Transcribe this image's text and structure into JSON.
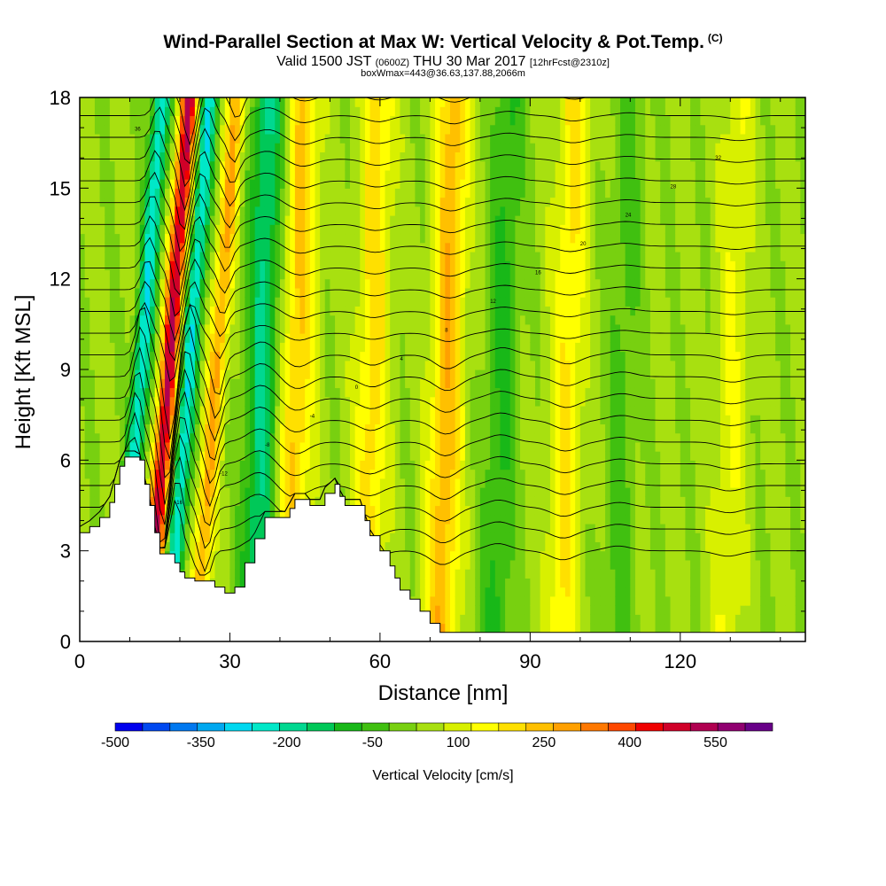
{
  "title": {
    "main": "Wind-Parallel Section at Max W: Vertical Velocity & Pot.Temp.",
    "mark": "(C)",
    "valid_prefix": "Valid 1500 JST",
    "valid_z": "(0600Z)",
    "valid_date": "THU 30 Mar 2017",
    "fcst": "[12hrFcst@2310z]",
    "box": "boxWmax=443@36.63,137.88,2066m"
  },
  "chart_data": {
    "type": "heatmap",
    "xlabel": "Distance [nm]",
    "ylabel": "Height [Kft MSL]",
    "xlim": [
      0,
      145
    ],
    "ylim": [
      0,
      18
    ],
    "x_ticks": [
      0,
      30,
      60,
      90,
      120
    ],
    "y_ticks": [
      0,
      3,
      6,
      9,
      12,
      15,
      18
    ],
    "colorbar": {
      "title": "Vertical Velocity [cm/s]",
      "min": -500,
      "max": 650,
      "step": 50,
      "labels": [
        -500,
        -350,
        -200,
        -50,
        100,
        250,
        400,
        550
      ],
      "colors": [
        "#0000ee",
        "#0048f0",
        "#0078f0",
        "#00a8f0",
        "#00d8f0",
        "#00e8c8",
        "#00d890",
        "#00c858",
        "#18b818",
        "#40c010",
        "#78d010",
        "#a8e010",
        "#d8f000",
        "#ffff00",
        "#ffe000",
        "#ffc000",
        "#ffa000",
        "#ff7800",
        "#ff4800",
        "#f00000",
        "#d00028",
        "#b00050",
        "#900070",
        "#680088"
      ]
    },
    "vertical_velocity_features": [
      {
        "x": 11,
        "value": -300
      },
      {
        "x": 16.5,
        "value": 500
      },
      {
        "x": 20.5,
        "value": -300
      },
      {
        "x": 26,
        "value": 250
      },
      {
        "x": 36,
        "value": -220
      },
      {
        "x": 43,
        "value": 200
      },
      {
        "x": 58,
        "value": 170
      },
      {
        "x": 73,
        "value": 230
      },
      {
        "x": 84,
        "value": -120
      },
      {
        "x": 97,
        "value": 150
      },
      {
        "x": 108,
        "value": -80
      },
      {
        "x": 130,
        "value": 90
      }
    ],
    "terrain": [
      [
        0,
        3.6
      ],
      [
        2,
        3.8
      ],
      [
        4,
        4.1
      ],
      [
        6,
        4.6
      ],
      [
        7,
        5.2
      ],
      [
        8,
        5.8
      ],
      [
        9,
        6.1
      ],
      [
        11,
        6.1
      ],
      [
        12,
        6.0
      ],
      [
        13,
        5.2
      ],
      [
        14,
        4.5
      ],
      [
        15,
        3.6
      ],
      [
        16,
        2.9
      ],
      [
        18,
        2.9
      ],
      [
        19,
        2.6
      ],
      [
        20,
        2.3
      ],
      [
        21,
        2.1
      ],
      [
        23,
        2.0
      ],
      [
        25,
        2.0
      ],
      [
        27,
        1.8
      ],
      [
        29,
        1.6
      ],
      [
        31,
        1.8
      ],
      [
        33,
        2.6
      ],
      [
        35,
        3.4
      ],
      [
        37,
        4.1
      ],
      [
        41,
        4.1
      ],
      [
        42,
        4.4
      ],
      [
        43,
        4.7
      ],
      [
        45,
        4.7
      ],
      [
        46,
        4.5
      ],
      [
        48,
        4.5
      ],
      [
        49,
        4.9
      ],
      [
        51,
        5.2
      ],
      [
        52,
        4.8
      ],
      [
        53,
        4.5
      ],
      [
        56,
        4.5
      ],
      [
        57,
        4.0
      ],
      [
        58,
        3.5
      ],
      [
        60,
        3.0
      ],
      [
        62,
        2.5
      ],
      [
        63,
        2.1
      ],
      [
        64,
        1.7
      ],
      [
        66,
        1.4
      ],
      [
        68,
        1.0
      ],
      [
        70,
        0.6
      ],
      [
        72,
        0.3
      ],
      [
        74,
        0.3
      ],
      [
        145,
        0.3
      ]
    ],
    "theta_contours": {
      "description": "potential temperature isentropes, labelled",
      "labels": [
        "-20",
        "-16",
        "-12",
        "-8",
        "-4",
        "0",
        "4",
        "8",
        "12",
        "16",
        "20",
        "24",
        "28",
        "32",
        "36"
      ]
    }
  }
}
